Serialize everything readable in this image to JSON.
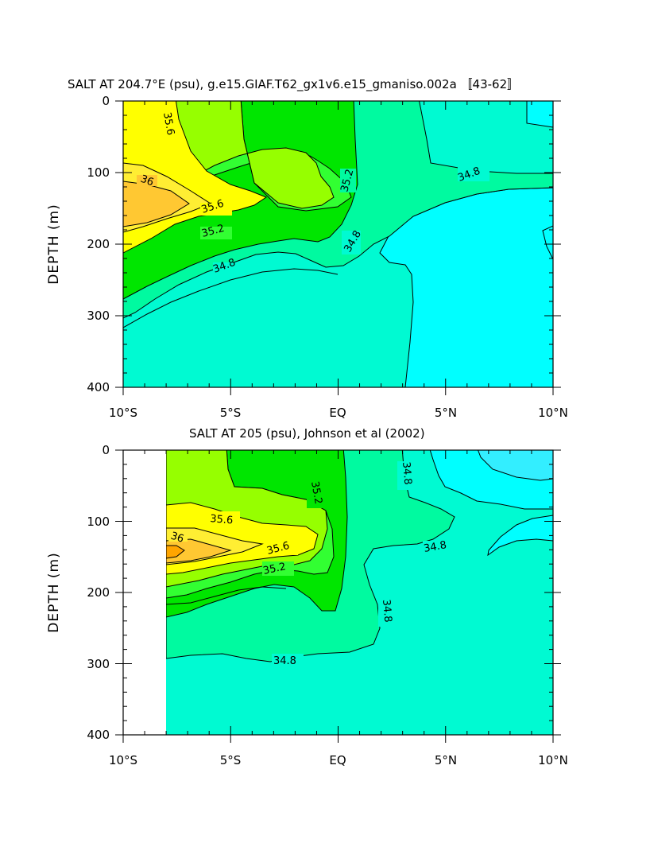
{
  "chart_data": [
    {
      "type": "heatmap",
      "subtype": "filled-contour",
      "title": "SALT AT 204.7°E (psu), g.e15.GIAF.T62_gx1v6.e15_gmaniso.002a 〚43-62〛",
      "ylabel": "DEPTH (m)",
      "xlabel": "",
      "x_ticks": [
        "10°S",
        "5°S",
        "EQ",
        "5°N",
        "10°N"
      ],
      "x_tick_values": [
        -10,
        -5,
        0,
        5,
        10
      ],
      "y_ticks": [
        "0",
        "100",
        "200",
        "300",
        "400"
      ],
      "y_tick_values": [
        0,
        100,
        200,
        300,
        400
      ],
      "xlim": [
        -10,
        10
      ],
      "ylim": [
        400,
        0
      ],
      "data_start_lat": -10,
      "contour_levels": [
        34.6,
        34.8,
        35.0,
        35.2,
        35.4,
        35.6,
        35.8,
        36.0,
        36.2
      ],
      "level_colors": {
        "below_34.6": "#00ffff",
        "34.6-34.8": "#00fad2",
        "34.8-35.0": "#00faa0",
        "35.0-35.2": "#00e600",
        "35.2-35.4": "#32ff32",
        "35.4-35.6": "#96ff00",
        "35.6-35.8": "#ffff00",
        "35.8-36.0": "#ffee33",
        "36.0-36.2": "#ffc832"
      },
      "contour_labels": [
        {
          "text": "35.6",
          "lat": -8.6,
          "depth": 35
        },
        {
          "text": "36",
          "lat": -8.8,
          "depth": 110
        },
        {
          "text": "35.6",
          "lat": -5.5,
          "depth": 150
        },
        {
          "text": "35.2",
          "lat": -4.9,
          "depth": 185
        },
        {
          "text": "34.8",
          "lat": -4.5,
          "depth": 242
        },
        {
          "text": "35.2",
          "lat": 0.4,
          "depth": 110
        },
        {
          "text": "34.8",
          "lat": 1.0,
          "depth": 190
        },
        {
          "text": "34.8",
          "lat": 6.5,
          "depth": 95
        }
      ]
    },
    {
      "type": "heatmap",
      "subtype": "filled-contour",
      "title": "SALT AT 205 (psu), Johnson et al (2002)",
      "ylabel": "DEPTH (m)",
      "xlabel": "",
      "x_ticks": [
        "10°S",
        "5°S",
        "EQ",
        "5°N",
        "10°N"
      ],
      "x_tick_values": [
        -10,
        -5,
        0,
        5,
        10
      ],
      "y_ticks": [
        "0",
        "100",
        "200",
        "300",
        "400"
      ],
      "y_tick_values": [
        0,
        100,
        200,
        300,
        400
      ],
      "xlim": [
        -10,
        10
      ],
      "ylim": [
        400,
        0
      ],
      "data_start_lat": -8,
      "contour_labels": [
        {
          "text": "35.6",
          "lat": -5.3,
          "depth": 95
        },
        {
          "text": "36",
          "lat": -7.5,
          "depth": 117
        },
        {
          "text": "35.6",
          "lat": -2.6,
          "depth": 142
        },
        {
          "text": "35.2",
          "lat": -2.6,
          "depth": 175
        },
        {
          "text": "35.2",
          "lat": -1.0,
          "depth": 40
        },
        {
          "text": "34.8",
          "lat": 3.2,
          "depth": 35
        },
        {
          "text": "34.8",
          "lat": 4.5,
          "depth": 137
        },
        {
          "text": "34.8",
          "lat": 2.5,
          "depth": 225
        },
        {
          "text": "34.8",
          "lat": -2.8,
          "depth": 325
        }
      ]
    }
  ]
}
